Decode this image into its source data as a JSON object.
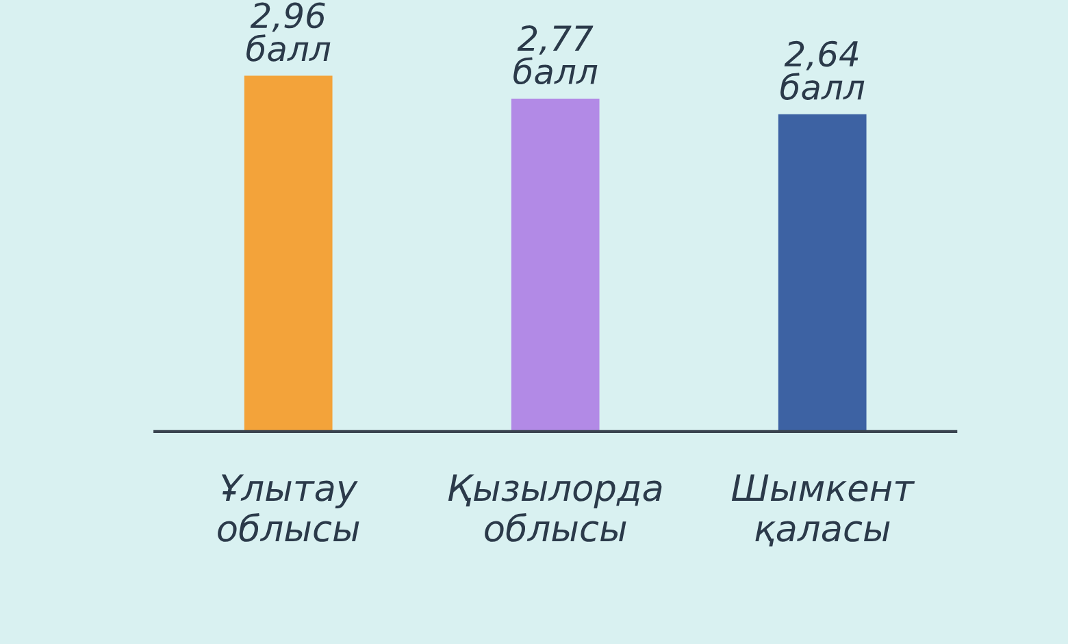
{
  "chart_data": {
    "type": "bar",
    "categories": [
      "Ұлытау\nоблысы",
      "Қызылорда\nоблысы",
      "Шымкент\nқаласы"
    ],
    "values": [
      2.96,
      2.77,
      2.64
    ],
    "colors": [
      "#f3a33a",
      "#b28ae6",
      "#3d62a3"
    ],
    "value_labels": [
      "2,96\nбалл",
      "2,77\nбалл",
      "2,64\nбалл"
    ],
    "tick_labels": "x",
    "grid": false,
    "legend": false
  }
}
